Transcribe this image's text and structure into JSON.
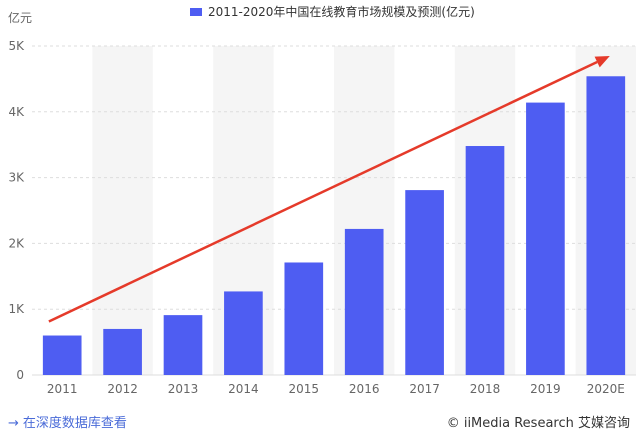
{
  "chart_data": {
    "type": "bar",
    "title": "2011-2020年中国在线教育市场规模及预测(亿元)",
    "legend": [
      "2011-2020年中国在线教育市场规模及预测(亿元)"
    ],
    "legend_position": "top-center",
    "ylabel": "亿元",
    "xlabel": "",
    "categories": [
      "2011",
      "2012",
      "2013",
      "2014",
      "2015",
      "2016",
      "2017",
      "2018",
      "2019",
      "2020E"
    ],
    "values": [
      600,
      700,
      910,
      1270,
      1710,
      2220,
      2810,
      3480,
      4140,
      4540
    ],
    "ylim": [
      0,
      5000
    ],
    "yticks": [
      0,
      1000,
      2000,
      3000,
      4000,
      5000
    ],
    "ytick_labels": [
      "0",
      "1K",
      "2K",
      "3K",
      "4K",
      "5K"
    ],
    "grid": true,
    "trend_arrow": true,
    "colors": {
      "bar": "#4e5df2",
      "arrow": "#e53a2a",
      "grid": "#dddddd",
      "band": "#f5f5f5"
    }
  },
  "footer": {
    "link_arrow": "→",
    "link_text": "在深度数据库查看",
    "credit": "© iiMedia Research 艾媒咨询"
  }
}
